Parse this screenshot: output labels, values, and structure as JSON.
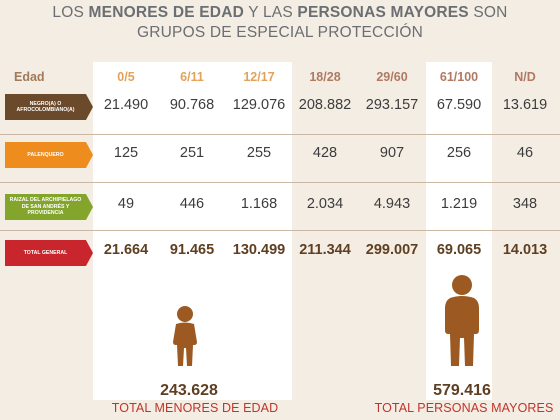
{
  "title": {
    "line1_pre": "LOS",
    "line1_bold1": "MENORES DE EDAD",
    "line1_mid": "Y LAS",
    "line1_bold2": "PERSONAS MAYORES",
    "line1_post": "SON",
    "line2": "GRUPOS DE ESPECIAL PROTECCIÓN"
  },
  "colors": {
    "background": "#f4ede3",
    "highlight_column": "#ffffff",
    "minor_header": "#e2a25a",
    "adult_header": "#b07a62",
    "total_text": "#5f3f22",
    "summary_label": "#c0352a",
    "figure": "#9c5a22"
  },
  "chart_data": {
    "type": "table",
    "column_header_label": "Edad",
    "columns": [
      "0/5",
      "6/11",
      "12/17",
      "18/28",
      "29/60",
      "61/100",
      "N/D"
    ],
    "rows": [
      {
        "label": "NEGRO(A) O AFROCOLOMBIANO(A)",
        "color": "#6b4a2c",
        "values": [
          "21.490",
          "90.768",
          "129.076",
          "208.882",
          "293.157",
          "67.590",
          "13.619"
        ]
      },
      {
        "label": "PALENQUERO",
        "color": "#ee8c1d",
        "values": [
          "125",
          "251",
          "255",
          "428",
          "907",
          "256",
          "46"
        ]
      },
      {
        "label": "RAIZAL DEL ARCHIPIELAGO DE SAN ANDRÉS Y PROVIDENCIA",
        "color": "#83a52c",
        "values": [
          "49",
          "446",
          "1.168",
          "2.034",
          "4.943",
          "1.219",
          "348"
        ]
      },
      {
        "label": "TOTAL GENERAL",
        "color": "#c8262c",
        "values": [
          "21.664",
          "91.465",
          "130.499",
          "211.344",
          "299.007",
          "69.065",
          "14.013"
        ]
      }
    ],
    "summaries": [
      {
        "value": "243.628",
        "label": "TOTAL MENORES DE EDAD",
        "icon": "child-figure-icon"
      },
      {
        "value": "579.416",
        "label": "TOTAL PERSONAS MAYORES",
        "icon": "adult-figure-icon"
      }
    ]
  }
}
